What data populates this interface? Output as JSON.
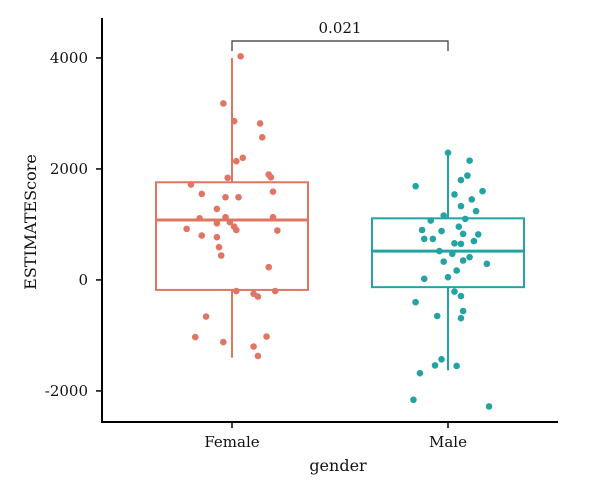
{
  "chart_data": {
    "type": "boxplot",
    "xlabel": "gender",
    "ylabel": "ESTIMATEScore",
    "ylim": [
      -2560,
      4720
    ],
    "yticks": [
      4000,
      2000,
      0,
      -2000
    ],
    "ytick_labels": [
      "4000",
      "2000",
      "0",
      "-2000"
    ],
    "categories": [
      "Female",
      "Male"
    ],
    "colors": {
      "Female": "#e07564",
      "Male": "#23a3a3"
    },
    "boxes": [
      {
        "name": "Female",
        "whisker_low": -1400,
        "q1": -180,
        "median": 1080,
        "q3": 1760,
        "whisker_high": 4000
      },
      {
        "name": "Male",
        "whisker_low": -1630,
        "q1": -130,
        "median": 520,
        "q3": 1110,
        "whisker_high": 2260
      }
    ],
    "significance": {
      "label": "0.021",
      "between": [
        "Female",
        "Male"
      ]
    },
    "points": {
      "Female": [
        {
          "x": 1.04,
          "y": 4030
        },
        {
          "x": 0.96,
          "y": 3180
        },
        {
          "x": 1.01,
          "y": 2860
        },
        {
          "x": 1.13,
          "y": 2820
        },
        {
          "x": 1.14,
          "y": 2570
        },
        {
          "x": 1.05,
          "y": 2200
        },
        {
          "x": 1.02,
          "y": 2140
        },
        {
          "x": 1.17,
          "y": 1900
        },
        {
          "x": 1.18,
          "y": 1850
        },
        {
          "x": 0.98,
          "y": 1840
        },
        {
          "x": 0.81,
          "y": 1720
        },
        {
          "x": 1.19,
          "y": 1590
        },
        {
          "x": 0.86,
          "y": 1550
        },
        {
          "x": 0.97,
          "y": 1490
        },
        {
          "x": 1.03,
          "y": 1490
        },
        {
          "x": 0.93,
          "y": 1280
        },
        {
          "x": 0.85,
          "y": 1110
        },
        {
          "x": 0.97,
          "y": 1130
        },
        {
          "x": 0.93,
          "y": 1020
        },
        {
          "x": 1.19,
          "y": 1130
        },
        {
          "x": 0.99,
          "y": 1040
        },
        {
          "x": 1.01,
          "y": 960
        },
        {
          "x": 0.79,
          "y": 920
        },
        {
          "x": 1.02,
          "y": 900
        },
        {
          "x": 1.21,
          "y": 890
        },
        {
          "x": 0.86,
          "y": 800
        },
        {
          "x": 0.93,
          "y": 770
        },
        {
          "x": 0.94,
          "y": 590
        },
        {
          "x": 0.95,
          "y": 440
        },
        {
          "x": 1.17,
          "y": 230
        },
        {
          "x": 1.02,
          "y": -200
        },
        {
          "x": 1.1,
          "y": -250
        },
        {
          "x": 1.12,
          "y": -300
        },
        {
          "x": 0.88,
          "y": -660
        },
        {
          "x": 1.16,
          "y": -1020
        },
        {
          "x": 0.83,
          "y": -1030
        },
        {
          "x": 0.96,
          "y": -1120
        },
        {
          "x": 1.1,
          "y": -1200
        },
        {
          "x": 1.12,
          "y": -1370
        },
        {
          "x": 1.2,
          "y": -200
        }
      ],
      "Male": [
        {
          "x": 2.0,
          "y": 2290
        },
        {
          "x": 2.1,
          "y": 2150
        },
        {
          "x": 2.09,
          "y": 1880
        },
        {
          "x": 2.06,
          "y": 1800
        },
        {
          "x": 1.85,
          "y": 1690
        },
        {
          "x": 2.16,
          "y": 1600
        },
        {
          "x": 2.03,
          "y": 1540
        },
        {
          "x": 2.11,
          "y": 1450
        },
        {
          "x": 2.06,
          "y": 1330
        },
        {
          "x": 2.13,
          "y": 1240
        },
        {
          "x": 1.98,
          "y": 1160
        },
        {
          "x": 2.08,
          "y": 1100
        },
        {
          "x": 1.92,
          "y": 1070
        },
        {
          "x": 2.05,
          "y": 960
        },
        {
          "x": 1.88,
          "y": 900
        },
        {
          "x": 1.97,
          "y": 880
        },
        {
          "x": 2.07,
          "y": 830
        },
        {
          "x": 2.14,
          "y": 820
        },
        {
          "x": 1.93,
          "y": 740
        },
        {
          "x": 1.89,
          "y": 740
        },
        {
          "x": 2.12,
          "y": 700
        },
        {
          "x": 2.03,
          "y": 660
        },
        {
          "x": 2.06,
          "y": 650
        },
        {
          "x": 1.96,
          "y": 520
        },
        {
          "x": 2.02,
          "y": 470
        },
        {
          "x": 2.1,
          "y": 410
        },
        {
          "x": 2.07,
          "y": 350
        },
        {
          "x": 1.98,
          "y": 330
        },
        {
          "x": 2.18,
          "y": 290
        },
        {
          "x": 2.04,
          "y": 170
        },
        {
          "x": 1.89,
          "y": 20
        },
        {
          "x": 2.0,
          "y": 50
        },
        {
          "x": 2.03,
          "y": -210
        },
        {
          "x": 2.06,
          "y": -290
        },
        {
          "x": 1.85,
          "y": -400
        },
        {
          "x": 2.07,
          "y": -560
        },
        {
          "x": 1.95,
          "y": -650
        },
        {
          "x": 2.06,
          "y": -690
        },
        {
          "x": 1.97,
          "y": -1430
        },
        {
          "x": 1.94,
          "y": -1540
        },
        {
          "x": 2.04,
          "y": -1550
        },
        {
          "x": 1.87,
          "y": -1680
        },
        {
          "x": 1.84,
          "y": -2160
        },
        {
          "x": 2.19,
          "y": -2280
        }
      ]
    }
  }
}
